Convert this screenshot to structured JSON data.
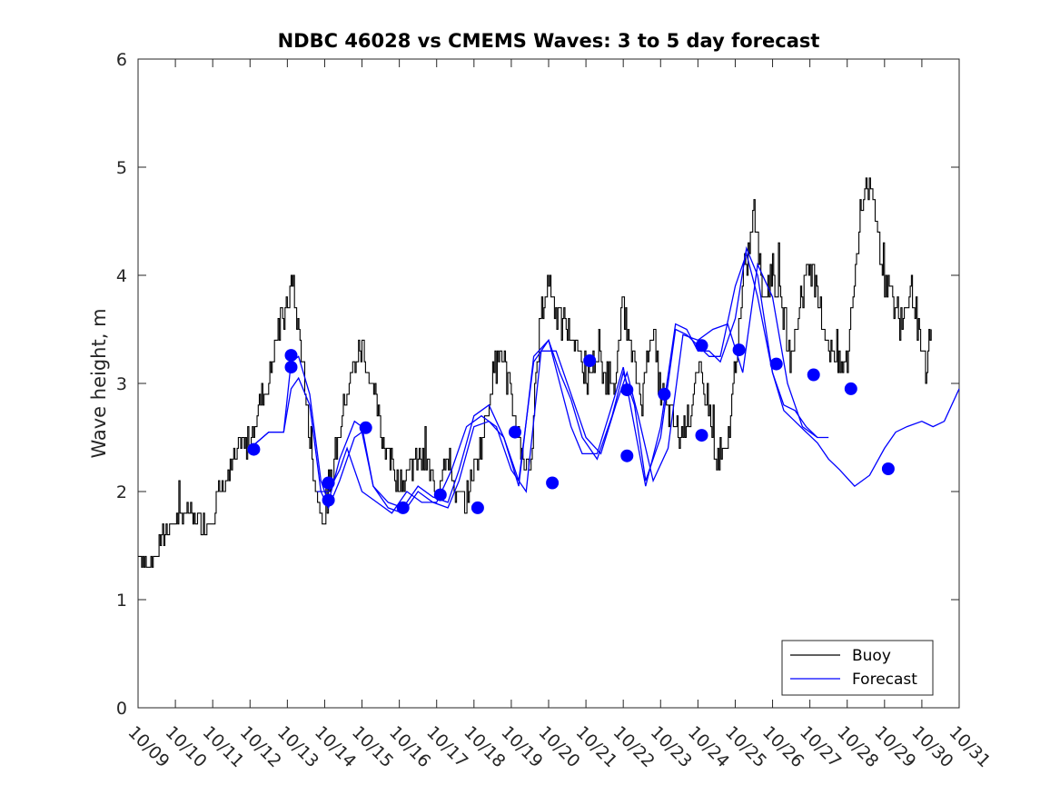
{
  "chart_data": {
    "type": "line",
    "title": "NDBC 46028 vs CMEMS Waves: 3 to 5 day forecast",
    "xlabel": "",
    "ylabel": "Wave height, m",
    "xlim": [
      0,
      22
    ],
    "ylim": [
      0,
      6
    ],
    "grid": false,
    "legend_position": "bottom-right",
    "x_tick_labels": [
      "10/09",
      "10/10",
      "10/11",
      "10/12",
      "10/13",
      "10/14",
      "10/15",
      "10/16",
      "10/17",
      "10/18",
      "10/19",
      "10/20",
      "10/21",
      "10/22",
      "10/23",
      "10/24",
      "10/25",
      "10/26",
      "10/27",
      "10/28",
      "10/29",
      "10/30",
      "10/31"
    ],
    "y_ticks": [
      0,
      1,
      2,
      3,
      4,
      5,
      6
    ],
    "colors": {
      "buoy": "#000000",
      "forecast": "#0000ff",
      "markers": "#0000ff"
    },
    "series": [
      {
        "name": "Buoy",
        "x": [
          0,
          0.25,
          0.5,
          0.75,
          1,
          1.25,
          1.5,
          1.75,
          2,
          2.25,
          2.5,
          2.75,
          3,
          3.25,
          3.5,
          3.75,
          4,
          4.1,
          4.25,
          4.4,
          4.5,
          4.6,
          4.75,
          4.9,
          5,
          5.1,
          5.25,
          5.5,
          5.75,
          6,
          6.25,
          6.5,
          6.75,
          7,
          7.25,
          7.5,
          7.75,
          8,
          8.25,
          8.5,
          8.75,
          9,
          9.25,
          9.5,
          9.75,
          10,
          10.25,
          10.5,
          10.75,
          11,
          11.25,
          11.5,
          11.75,
          12,
          12.25,
          12.5,
          12.75,
          13,
          13.25,
          13.5,
          13.75,
          14,
          14.25,
          14.5,
          14.75,
          15,
          15.25,
          15.5,
          15.75,
          16,
          16.25,
          16.5,
          16.75,
          17,
          17.25,
          17.5,
          17.75,
          18,
          18.25,
          18.5,
          18.75,
          19,
          19.25,
          19.5,
          19.75,
          20,
          20.25,
          20.5,
          20.75,
          21,
          21.1,
          21.25
        ],
        "values": [
          1.45,
          1.3,
          1.45,
          1.65,
          1.7,
          1.8,
          1.75,
          1.7,
          1.8,
          2.05,
          2.2,
          2.4,
          2.5,
          2.8,
          3.05,
          3.5,
          3.7,
          3.9,
          3.6,
          3.25,
          2.8,
          2.5,
          2.05,
          1.8,
          1.75,
          1.9,
          2.3,
          2.75,
          3.15,
          3.35,
          3.0,
          2.55,
          2.3,
          2.05,
          2.2,
          2.3,
          2.25,
          2.0,
          2.4,
          2.0,
          1.9,
          2.2,
          2.55,
          3.1,
          3.3,
          2.8,
          2.4,
          2.2,
          3.5,
          4.0,
          3.6,
          3.5,
          3.4,
          3.0,
          3.25,
          3.1,
          3.0,
          3.7,
          3.2,
          2.85,
          3.6,
          2.9,
          2.7,
          2.5,
          2.7,
          3.1,
          2.85,
          2.3,
          2.3,
          3.2,
          4.0,
          4.6,
          3.8,
          4.05,
          3.7,
          3.2,
          3.8,
          4.1,
          3.7,
          3.4,
          3.1,
          3.2,
          4.2,
          4.9,
          4.5,
          4.0,
          3.7,
          3.6,
          3.9,
          3.2,
          3.1,
          3.5
        ],
        "note": "Buoy raw series is dense; values above are representative samples of the plotted black trace"
      },
      {
        "name": "Forecast",
        "x": [],
        "values": []
      }
    ],
    "forecast_runs": [
      {
        "x": [
          3,
          3.5,
          3.9,
          4.1,
          4.3,
          4.6,
          4.9,
          5.1,
          5.4,
          5.8,
          6.0,
          6.3,
          6.7,
          7.1,
          7.5,
          7.9,
          8.3,
          8.6,
          9.0,
          9.4,
          9.8,
          10.2,
          10.6,
          11.0,
          11.3,
          11.6,
          11.9,
          12.3,
          12.7,
          13.0,
          13.3,
          13.6,
          14.0,
          14.4,
          14.7,
          15.0,
          15.3,
          15.6,
          16.0,
          16.3,
          16.6,
          17.0,
          17.3,
          17.6,
          17.9,
          18.2,
          18.5,
          18.8,
          19.2,
          19.6,
          20.0,
          20.3,
          20.6,
          21.0,
          21.3,
          21.6,
          22.0
        ],
        "values": [
          2.4,
          2.55,
          2.55,
          2.95,
          3.05,
          2.8,
          2.0,
          1.85,
          2.1,
          2.5,
          2.55,
          2.05,
          1.85,
          1.8,
          2.0,
          1.9,
          1.85,
          2.1,
          2.6,
          2.65,
          2.5,
          2.1,
          3.2,
          3.4,
          3.1,
          2.85,
          2.5,
          2.3,
          2.7,
          3.1,
          2.8,
          2.1,
          2.5,
          3.5,
          3.45,
          3.35,
          3.25,
          3.25,
          3.9,
          4.2,
          3.8,
          3.1,
          2.75,
          2.65,
          2.55,
          2.45,
          2.3,
          2.2,
          2.05,
          2.15,
          2.4,
          2.55,
          2.6,
          2.65,
          2.6,
          2.65,
          2.95
        ]
      },
      {
        "x": [
          3,
          3.5,
          3.9,
          4.1,
          4.3,
          4.6,
          4.9,
          5.1,
          5.4,
          5.8,
          6.0,
          6.3,
          6.7,
          7.1,
          7.5,
          7.9,
          8.3,
          8.6,
          9.0,
          9.4,
          9.8,
          10.2,
          10.6,
          11.0,
          11.3,
          11.6,
          11.9,
          12.3,
          12.7,
          13.0,
          13.3,
          13.6,
          14.0,
          14.4,
          14.7,
          15.0,
          15.3,
          15.6,
          16.0,
          16.3,
          16.6,
          17.0,
          17.3,
          17.6,
          17.9,
          18.2,
          18.5
        ],
        "values": [
          2.4,
          2.55,
          2.55,
          3.2,
          3.25,
          2.9,
          2.1,
          1.9,
          2.3,
          2.65,
          2.6,
          2.05,
          1.9,
          1.85,
          2.05,
          1.95,
          1.9,
          2.2,
          2.7,
          2.8,
          2.5,
          2.05,
          3.25,
          3.4,
          3.0,
          2.6,
          2.35,
          2.35,
          2.8,
          3.15,
          2.6,
          2.05,
          2.6,
          3.55,
          3.5,
          3.3,
          3.3,
          3.2,
          3.6,
          4.25,
          4.0,
          3.1,
          2.8,
          2.75,
          2.6,
          2.5,
          2.5
        ]
      },
      {
        "x": [
          4.8,
          5.1,
          5.4,
          5.6,
          6.0,
          6.4,
          6.8,
          7.2,
          7.6,
          8.0,
          8.4,
          8.8,
          9.2,
          9.6,
          10.0,
          10.4,
          10.8,
          11.2,
          11.6,
          12.0,
          12.4,
          12.8,
          13.1,
          13.4,
          13.8,
          14.2,
          14.6,
          15.0,
          15.4,
          15.8,
          16.2,
          16.6,
          17.0,
          17.4,
          17.8,
          18.2
        ],
        "values": [
          2.0,
          2.0,
          2.2,
          2.4,
          2.0,
          1.9,
          1.8,
          2.0,
          1.9,
          1.9,
          2.2,
          2.6,
          2.7,
          2.6,
          2.2,
          2.0,
          3.3,
          3.3,
          2.9,
          2.5,
          2.35,
          2.8,
          3.1,
          2.7,
          2.1,
          2.4,
          3.45,
          3.4,
          3.5,
          3.55,
          3.1,
          4.1,
          3.8,
          3.0,
          2.6,
          2.5
        ]
      }
    ],
    "forecast_markers": {
      "x": [
        3.1,
        4.1,
        4.1,
        5.1,
        5.1,
        6.1,
        7.1,
        8.1,
        9.1,
        10.1,
        11.1,
        12.1,
        13.1,
        13.1,
        14.1,
        15.1,
        15.1,
        16.1,
        17.1,
        18.1,
        19.1,
        20.1
      ],
      "values": [
        2.39,
        3.26,
        3.15,
        2.08,
        1.92,
        2.59,
        1.85,
        1.97,
        1.85,
        2.55,
        2.08,
        3.21,
        2.33,
        2.94,
        2.9,
        2.52,
        3.35,
        3.31,
        3.18,
        3.08,
        2.95,
        2.21
      ]
    },
    "legend": [
      "Buoy",
      "Forecast"
    ]
  }
}
